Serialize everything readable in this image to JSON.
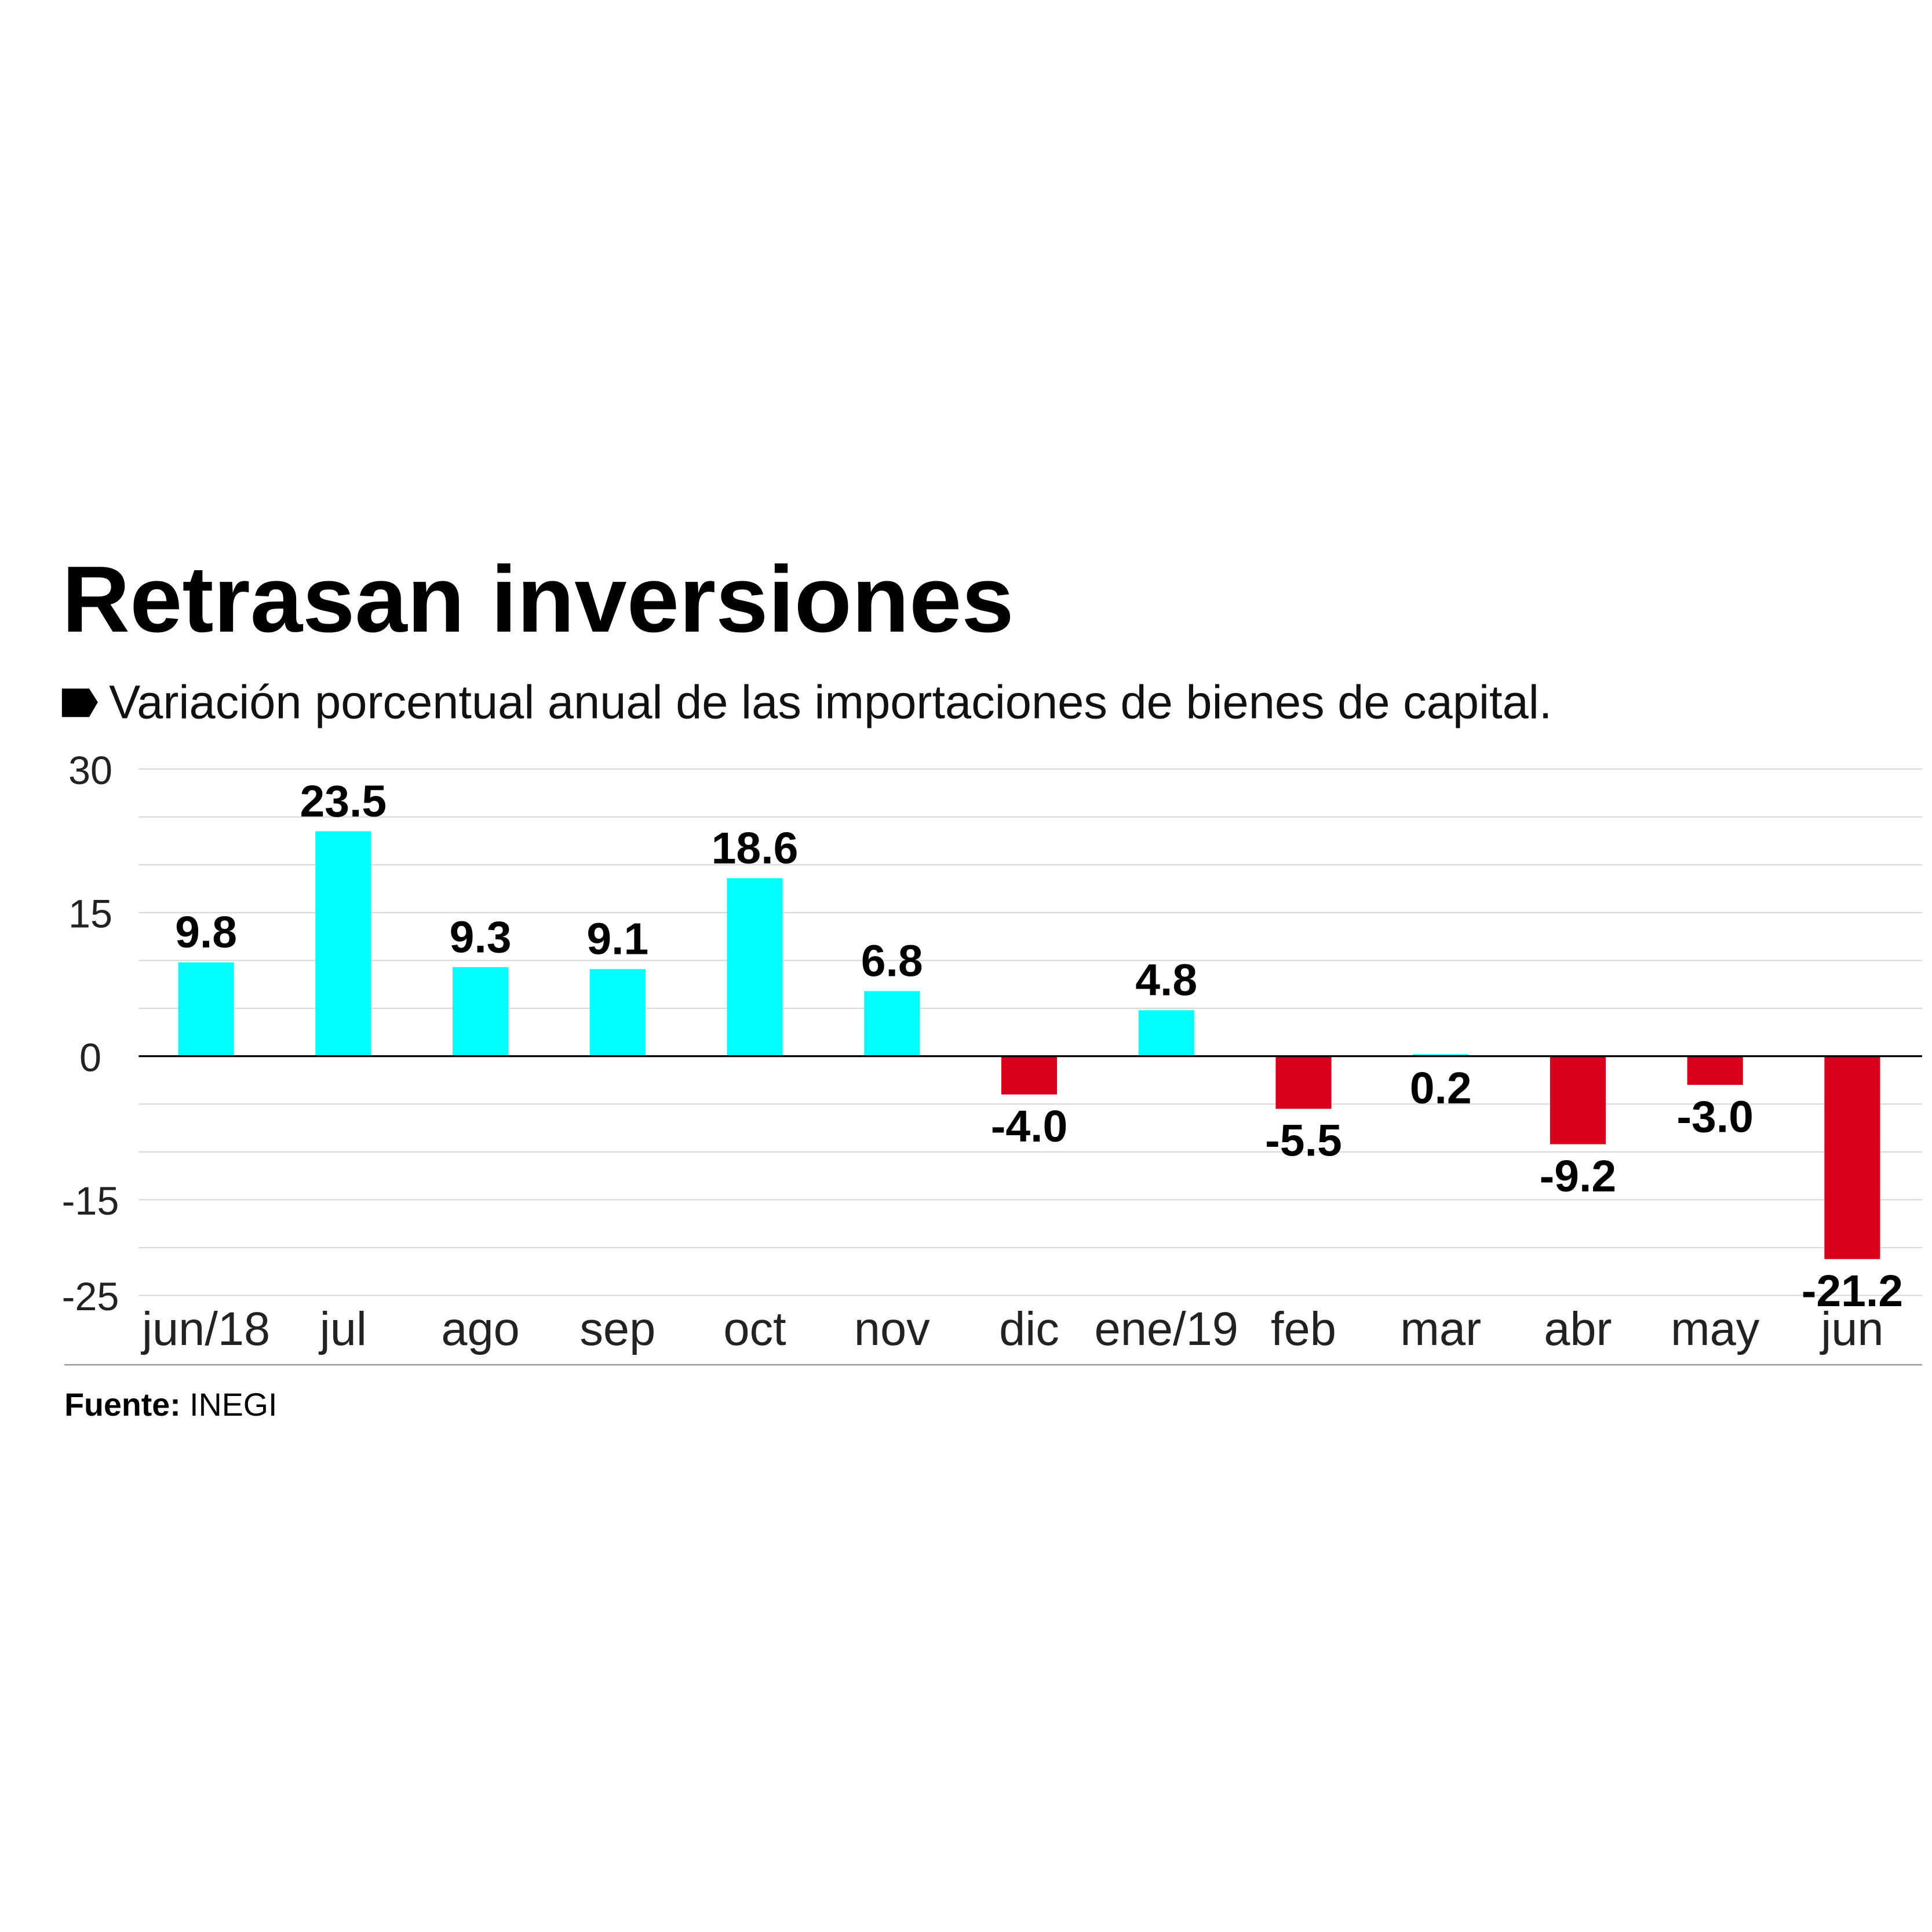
{
  "chart_data": {
    "type": "bar",
    "title": "Retrasan inversiones",
    "subtitle": "Variación porcentual anual de las importaciones de bienes de capital.",
    "source_label": "Fuente:",
    "source": "INEGI",
    "categories": [
      "jun/18",
      "jul",
      "ago",
      "sep",
      "oct",
      "nov",
      "dic",
      "ene/19",
      "feb",
      "mar",
      "abr",
      "may",
      "jun"
    ],
    "values": [
      9.8,
      23.5,
      9.3,
      9.1,
      18.6,
      6.8,
      -4.0,
      4.8,
      -5.5,
      0.2,
      -9.2,
      -3.0,
      -21.2
    ],
    "value_labels": [
      "9.8",
      "23.5",
      "9.3",
      "9.1",
      "18.6",
      "6.8",
      "-4.0",
      "4.8",
      "-5.5",
      "0.2",
      "-9.2",
      "-3.0",
      "-21.2"
    ],
    "positive_color": "#00ffff",
    "negative_color": "#d9001b",
    "ylim": [
      -25,
      30
    ],
    "yticks": [
      30,
      15,
      0,
      -15,
      -25
    ],
    "grid_lines": [
      30,
      25,
      20,
      15,
      10,
      5,
      0,
      -5,
      -10,
      -15,
      -20,
      -25
    ],
    "grid": true
  }
}
